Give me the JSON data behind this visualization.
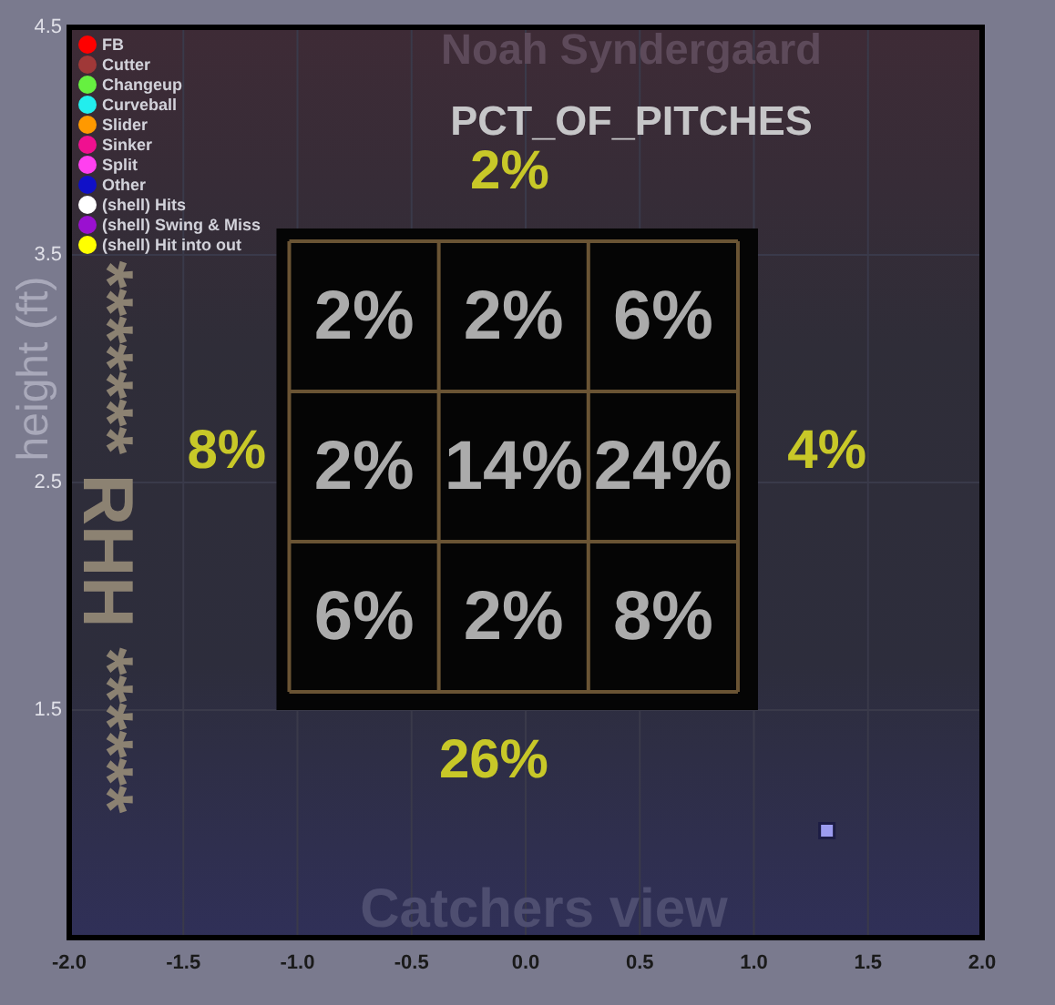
{
  "chart_data": {
    "type": "scatter",
    "title": "Noah Syndergaard",
    "subtitle": "PCT_OF_PITCHES",
    "xlabel": "Catchers view",
    "ylabel": "height (ft)",
    "xlim": [
      -2,
      2
    ],
    "ylim": [
      0.5,
      4.5
    ],
    "xticks": [
      {
        "value": -2,
        "label": "-2.0"
      },
      -1.5,
      {
        "value": -1,
        "label": "-1.0"
      },
      -0.5,
      {
        "value": 0,
        "label": "0.0"
      },
      0.5,
      {
        "value": 1,
        "label": "1.0"
      },
      1.5,
      {
        "value": 2,
        "label": "2.0"
      }
    ],
    "yticks": [
      1.5,
      2.5,
      3.5,
      4.5
    ],
    "grid": true,
    "legend": "top left",
    "marker": "circle",
    "series": [
      {
        "color": "#9c9cf0",
        "marker": "square",
        "x": [
          1.32
        ],
        "values": [
          0.97
        ]
      },
      {
        "name": "FB",
        "color": "#ff0000"
      },
      {
        "name": "Cutter",
        "color": "#a03838"
      },
      {
        "name": "Changeup",
        "color": "#66f040"
      },
      {
        "name": "Curveball",
        "color": "#22eeee"
      },
      {
        "name": "Slider",
        "color": "#ff9900"
      },
      {
        "name": "Sinker",
        "color": "#f01090"
      },
      {
        "name": "Split",
        "color": "#ff40f0"
      },
      {
        "name": "Other",
        "color": "#1010c8"
      },
      {
        "name": "(shell) Hits",
        "color": "#ffffff"
      },
      {
        "name": "(shell) Swing & Miss",
        "color": "#9a10d0"
      },
      {
        "name": "(shell) Hit into out",
        "color": "#ffff00"
      }
    ],
    "annotations": [
      "2%",
      "2%",
      "6%",
      "2%",
      "14%",
      "24%",
      "6%",
      "2%",
      "8%",
      "2%",
      "8%",
      "4%",
      "26%",
      "******* RHH ******"
    ]
  }
}
